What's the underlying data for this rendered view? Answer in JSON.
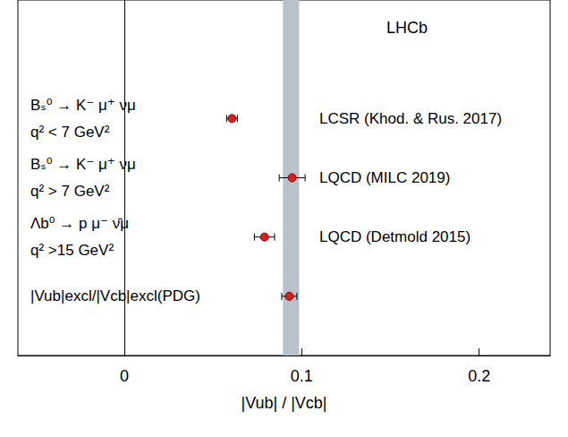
{
  "chart_data": {
    "type": "scatter",
    "title": "LHCb",
    "xlabel": "|Vub| / |Vcb|",
    "categories": [
      null,
      null,
      "Bₛ⁰ → K⁻ μ⁺ νμ\nq² < 7 GeV²",
      "Bₛ⁰ → K⁻ μ⁺ νμ\nq² > 7 GeV²",
      "Λb⁰ → p μ⁻ ν̄μ\nq² >15 GeV²",
      "|Vub|excl/|Vcb|excl(PDG)",
      null
    ],
    "values": [
      null,
      null,
      0.0607,
      0.0946,
      0.079,
      0.093,
      null
    ],
    "errors": [
      null,
      null,
      0.003,
      0.0073,
      0.0057,
      0.0043,
      null
    ],
    "annotations": [
      null,
      null,
      "LCSR (Khod. & Rus. 2017)",
      "LQCD (MILC 2019)",
      "LQCD (Detmold 2015)",
      null,
      null
    ],
    "band": [
      0.0894,
      0.0985
    ],
    "color": "#d42020",
    "marker": "circle",
    "xlim": [
      -0.06,
      0.24
    ],
    "xticks": [
      0,
      0.1,
      0.2
    ],
    "grid": false
  }
}
